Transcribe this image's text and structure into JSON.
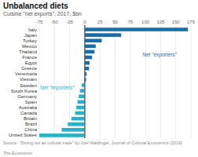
{
  "chart_data": {
    "type": "bar",
    "orientation": "horizontal",
    "title": "Unbalanced diets",
    "subtitle": "Cuisine \"net exports\", 2017, $bn",
    "categories": [
      "Italy",
      "Japan",
      "Turkey",
      "Mexico",
      "Thailand",
      "France",
      "Egypt",
      "Greece",
      "Venezuela",
      "Vietnam",
      "Sweden",
      "South Korea",
      "Germany",
      "Spain",
      "Australia",
      "Canada",
      "Britain",
      "Brazil",
      "China",
      "United States"
    ],
    "values": [
      170,
      60,
      28,
      18,
      16,
      12,
      8,
      7,
      3,
      2,
      -5,
      -8,
      -10,
      -12,
      -14,
      -16,
      -22,
      -28,
      -38,
      -75
    ],
    "colors": [
      "#1a6ea8",
      "#1a6ea8",
      "#1a6ea8",
      "#1a6ea8",
      "#1a6ea8",
      "#1a6ea8",
      "#1a6ea8",
      "#1a6ea8",
      "#1a6ea8",
      "#1a6ea8",
      "#2ab0c8",
      "#2ab0c8",
      "#2ab0c8",
      "#2ab0c8",
      "#2ab0c8",
      "#2ab0c8",
      "#2ab0c8",
      "#2ab0c8",
      "#2ab0c8",
      "#2ab0c8"
    ],
    "xlim": [
      -75,
      175
    ],
    "xticks": [
      -75,
      -50,
      -25,
      0,
      25,
      50,
      75,
      100,
      125,
      150,
      175
    ],
    "grid": true,
    "annotations": [
      {
        "text": "Net \"exporters\"",
        "color": "#1a6ea8"
      },
      {
        "text": "Net \"importers\"",
        "color": "#2ab0c8"
      }
    ],
    "source": "Source: \"Dining out as cultural trade\" by Joel Waldfogel, Journal of Cultural Economics (2019)",
    "credit": "The Economist"
  }
}
